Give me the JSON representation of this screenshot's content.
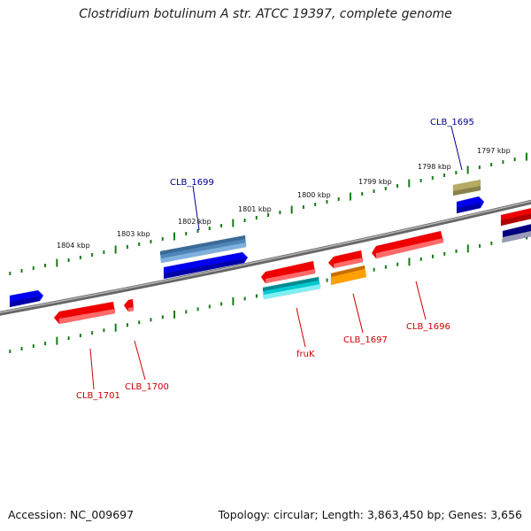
{
  "title": "Clostridium botulinum A str. ATCC 19397, complete genome",
  "footer": {
    "accession": "Accession: NC_009697",
    "stats": "Topology: circular; Length: 3,863,450 bp; Genes: 3,656"
  },
  "scale_labels": [
    "1797 kbp",
    "1798 kbp",
    "1799 kbp",
    "1800 kbp",
    "1801 kbp",
    "1802 kbp",
    "1803 kbp",
    "1804 kbp"
  ],
  "gene_labels": [
    {
      "text": "CLB_1695",
      "strand": "plus"
    },
    {
      "text": "CLB_1699",
      "strand": "plus"
    },
    {
      "text": "CLB_1696",
      "strand": "minus"
    },
    {
      "text": "CLB_1697",
      "strand": "minus"
    },
    {
      "text": "fruK",
      "strand": "minus"
    },
    {
      "text": "CLB_1700",
      "strand": "minus"
    },
    {
      "text": "CLB_1701",
      "strand": "minus"
    }
  ],
  "colors": {
    "plus_label": "#00008b",
    "minus_label": "#cc0000",
    "ticks": "#1a7a1a",
    "backbone": "#808080"
  }
}
